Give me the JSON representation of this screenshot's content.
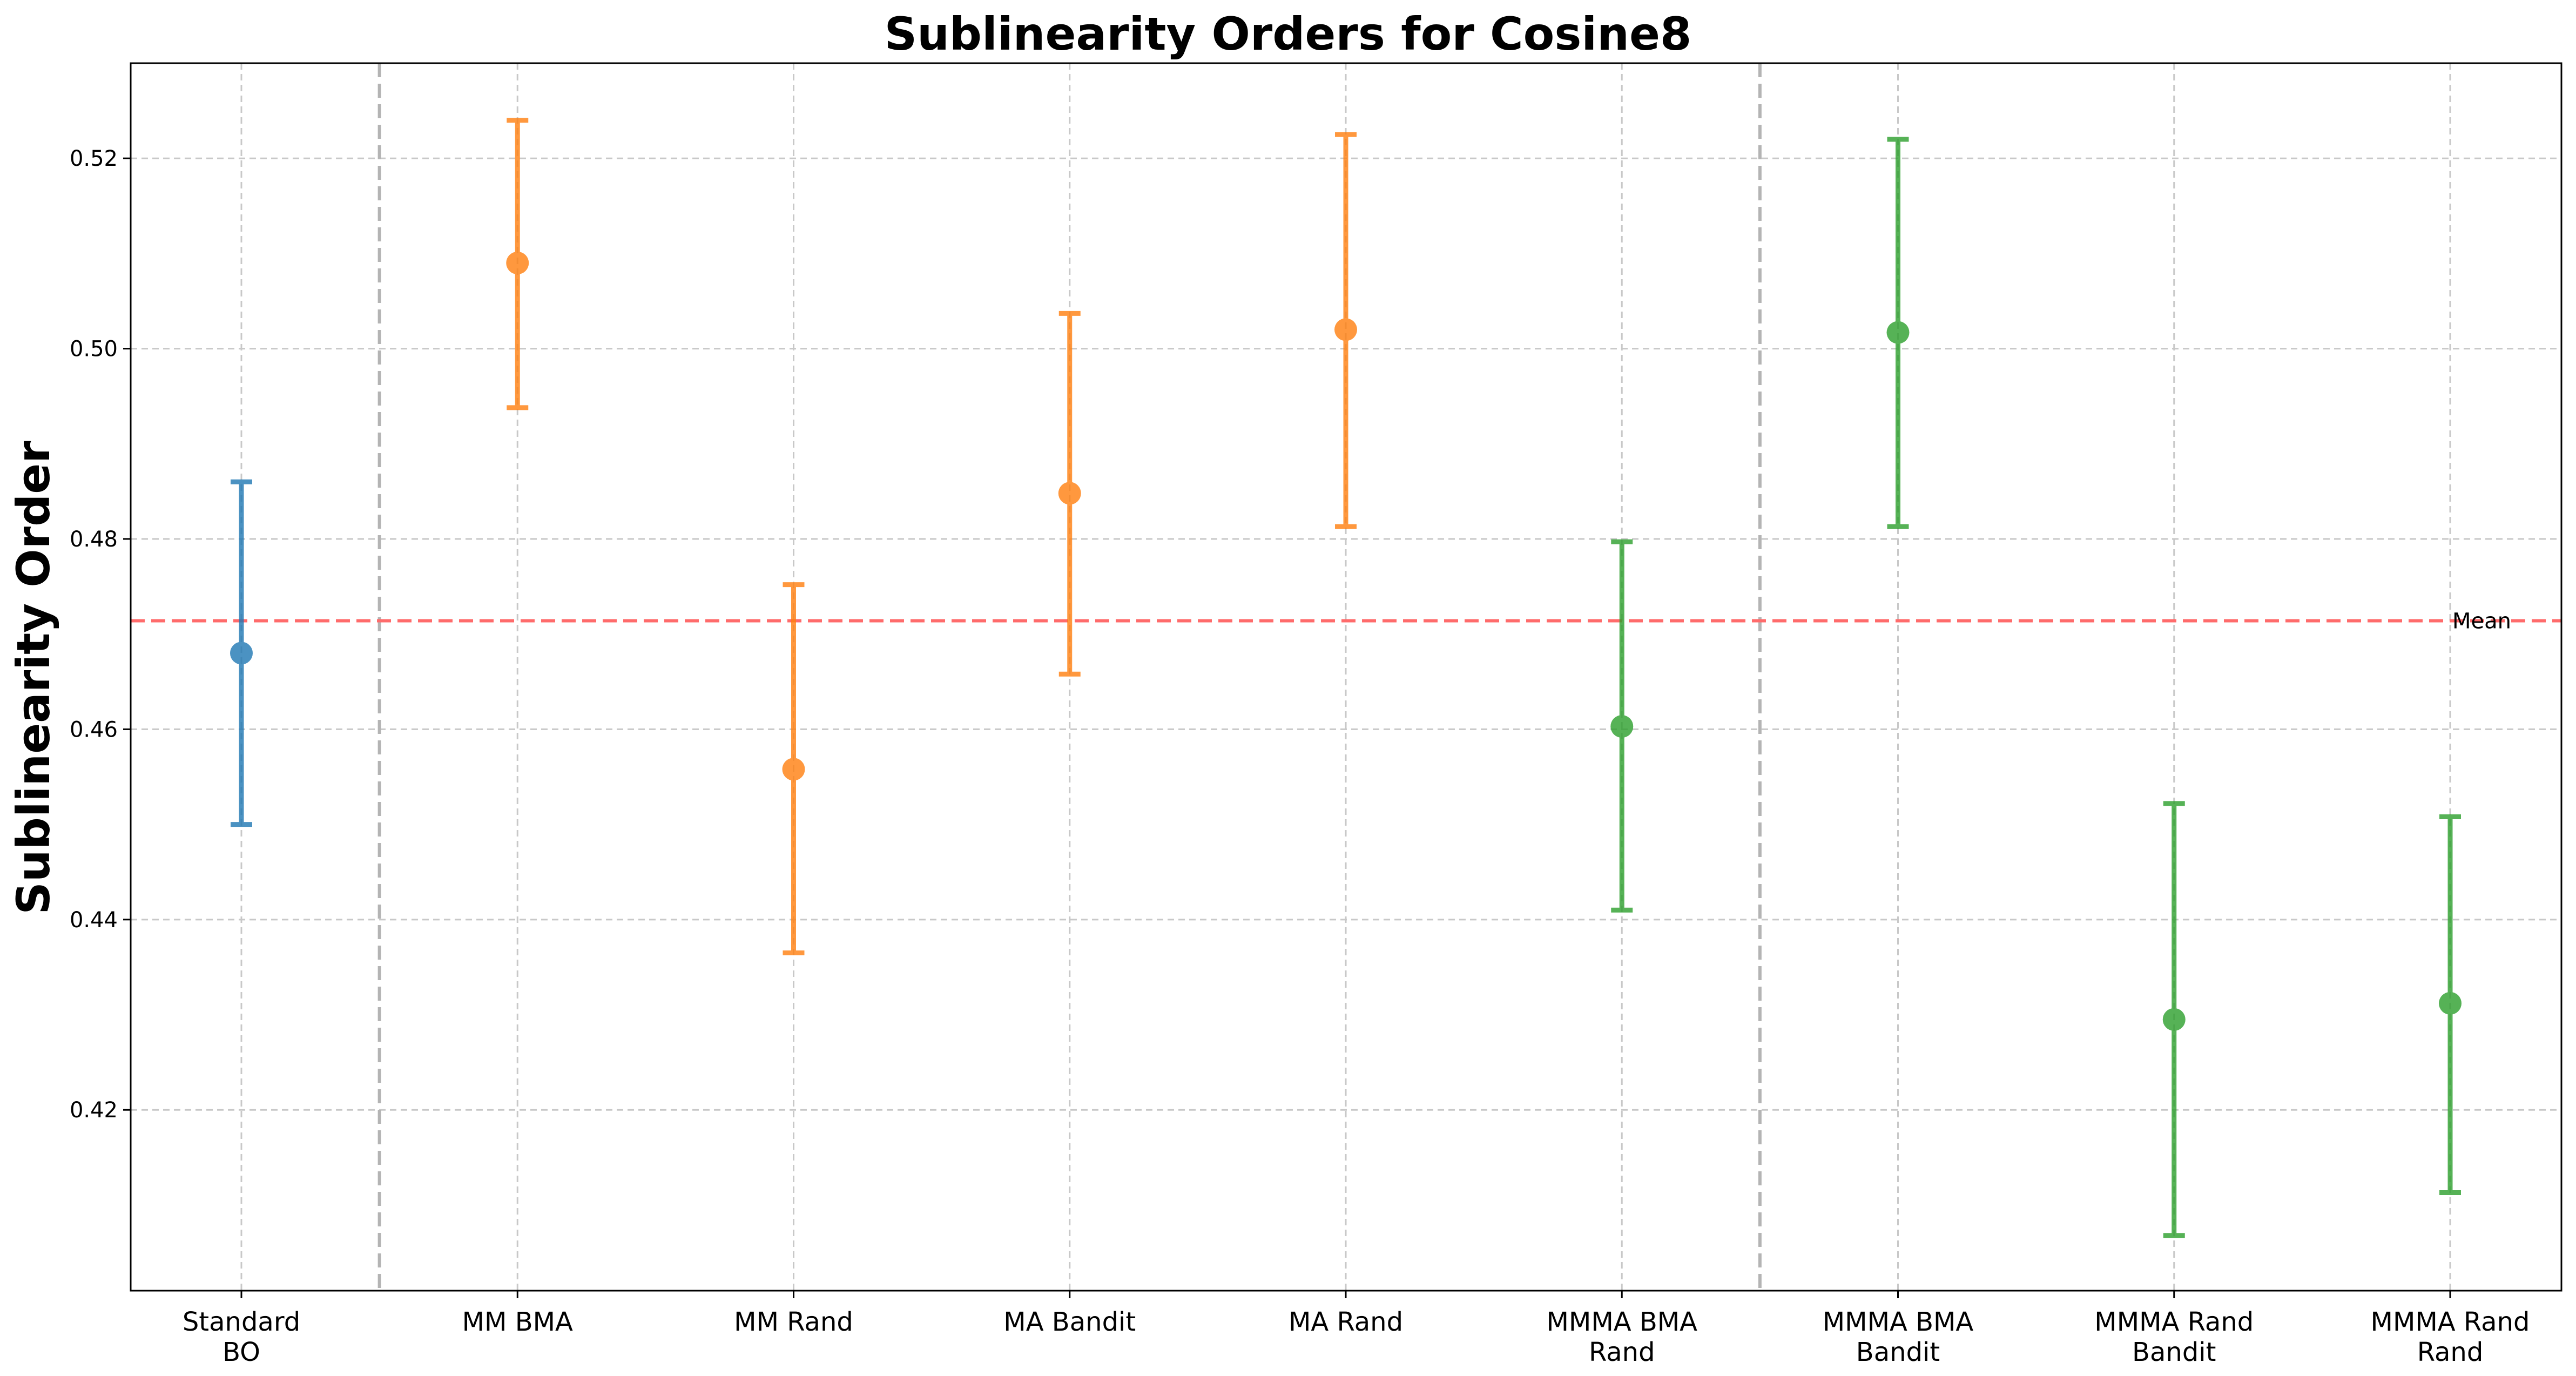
{
  "chart_data": {
    "type": "scatter",
    "title": "Sublinearity Orders for Cosine8",
    "xlabel": "",
    "ylabel": "Sublinearity Order",
    "ylim": [
      0.401,
      0.53
    ],
    "yticks": [
      "0.42",
      "0.44",
      "0.46",
      "0.48",
      "0.50",
      "0.52"
    ],
    "grid": true,
    "categories": [
      [
        "Standard",
        "BO"
      ],
      [
        "MM BMA"
      ],
      [
        "MM Rand"
      ],
      [
        "MA Bandit"
      ],
      [
        "MA Rand"
      ],
      [
        "MMMA BMA",
        "Rand"
      ],
      [
        "MMMA BMA",
        "Bandit"
      ],
      [
        "MMMA Rand",
        "Bandit"
      ],
      [
        "MMMA Rand",
        "Rand"
      ]
    ],
    "points": [
      {
        "value": 0.468,
        "lower": 0.45,
        "upper": 0.486,
        "color": "#1f77b4"
      },
      {
        "value": 0.509,
        "lower": 0.4938,
        "upper": 0.524,
        "color": "#ff7f0e"
      },
      {
        "value": 0.4558,
        "lower": 0.4365,
        "upper": 0.4752,
        "color": "#ff7f0e"
      },
      {
        "value": 0.4848,
        "lower": 0.4658,
        "upper": 0.5037,
        "color": "#ff7f0e"
      },
      {
        "value": 0.502,
        "lower": 0.4813,
        "upper": 0.5225,
        "color": "#ff7f0e"
      },
      {
        "value": 0.4603,
        "lower": 0.441,
        "upper": 0.4797,
        "color": "#2ca02c"
      },
      {
        "value": 0.5017,
        "lower": 0.4813,
        "upper": 0.522,
        "color": "#2ca02c"
      },
      {
        "value": 0.4295,
        "lower": 0.4068,
        "upper": 0.4522,
        "color": "#2ca02c"
      },
      {
        "value": 0.4312,
        "lower": 0.4113,
        "upper": 0.4508,
        "color": "#2ca02c"
      }
    ],
    "group_separators_after": [
      0,
      5
    ],
    "mean": {
      "value": 0.4714,
      "label": "Mean",
      "color": "#ff6b6b"
    }
  }
}
